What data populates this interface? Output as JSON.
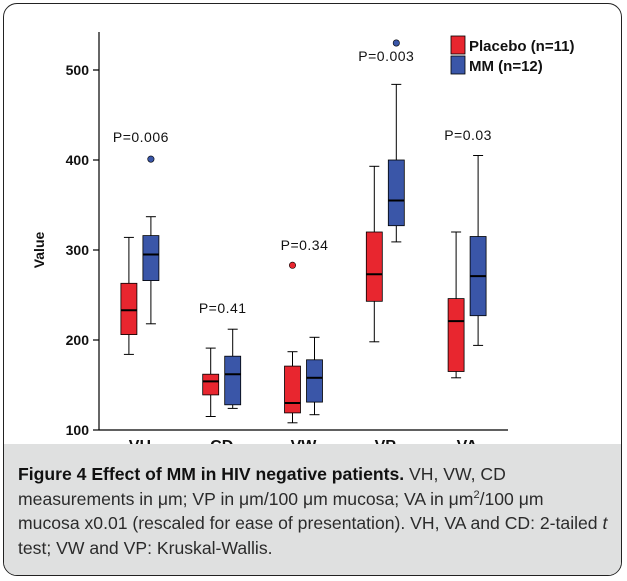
{
  "chart_data": {
    "type": "boxplot",
    "ylabel": "Value",
    "ylim": [
      100,
      550
    ],
    "yticks": [
      100,
      200,
      300,
      400,
      500
    ],
    "categories": [
      "VH",
      "CD",
      "VW",
      "VP",
      "VA"
    ],
    "series": [
      {
        "name": "Placebo (n=11)",
        "color": "#e8262f",
        "boxes": [
          {
            "min": 184,
            "q1": 206,
            "median": 233,
            "q3": 263,
            "max": 314,
            "outliers": []
          },
          {
            "min": 115,
            "q1": 139,
            "median": 154,
            "q3": 162,
            "max": 191,
            "outliers": []
          },
          {
            "min": 108,
            "q1": 119,
            "median": 130,
            "q3": 171,
            "max": 187,
            "outliers": [
              283
            ]
          },
          {
            "min": 198,
            "q1": 243,
            "median": 273,
            "q3": 320,
            "max": 393,
            "outliers": []
          },
          {
            "min": 158,
            "q1": 165,
            "median": 221,
            "q3": 246,
            "max": 320,
            "outliers": []
          }
        ]
      },
      {
        "name": "MM (n=12)",
        "color": "#3a56a8",
        "boxes": [
          {
            "min": 218,
            "q1": 266,
            "median": 295,
            "q3": 316,
            "max": 337,
            "outliers": [
              401
            ]
          },
          {
            "min": 124,
            "q1": 128,
            "median": 162,
            "q3": 182,
            "max": 212,
            "outliers": []
          },
          {
            "min": 117,
            "q1": 131,
            "median": 158,
            "q3": 178,
            "max": 203,
            "outliers": []
          },
          {
            "min": 309,
            "q1": 327,
            "median": 355,
            "q3": 400,
            "max": 484,
            "outliers": [
              530
            ]
          },
          {
            "min": 194,
            "q1": 227,
            "median": 271,
            "q3": 315,
            "max": 405,
            "outliers": []
          }
        ]
      }
    ],
    "annotations": [
      {
        "category": "VH",
        "text": "P=0.006",
        "y": 420
      },
      {
        "category": "CD",
        "text": "P=0.41",
        "y": 230
      },
      {
        "category": "VW",
        "text": "P=0.34",
        "y": 300
      },
      {
        "category": "VP",
        "text": "P=0.003",
        "y": 510
      },
      {
        "category": "VA",
        "text": "P=0.03",
        "y": 422
      }
    ],
    "legend": {
      "position": "top-right"
    }
  },
  "caption": {
    "title": "Figure 4 Effect of MM in HIV negative patients.",
    "line1": " VH, VW, CD measurements in μm; VP in μm/100 μm mucosa; VA in μm",
    "sup": "2",
    "line2": "/100 μm mucosa x0.01 (rescaled for ease of presentation). VH, VA and CD: 2-tailed ",
    "italic": "t",
    "line3": " test; VW and VP: Kruskal-Wallis."
  }
}
